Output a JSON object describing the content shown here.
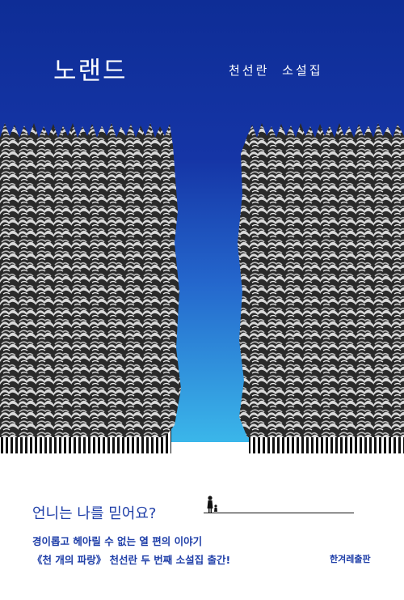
{
  "cover": {
    "title": "노랜드",
    "author_line": "천선란 소설집",
    "tagline": "언니는 나를 믿어요?",
    "blurb_line1": "경이롭고 헤아릴 수 없는 열 편의 이야기",
    "blurb_line2": "《천 개의 파랑》 천선란 두 번째 소설집 출간!",
    "publisher": "한겨레출판"
  },
  "colors": {
    "sky_top": "#0e2d96",
    "sky_bottom": "#36b4ea",
    "text_blue": "#1e3ea8"
  }
}
